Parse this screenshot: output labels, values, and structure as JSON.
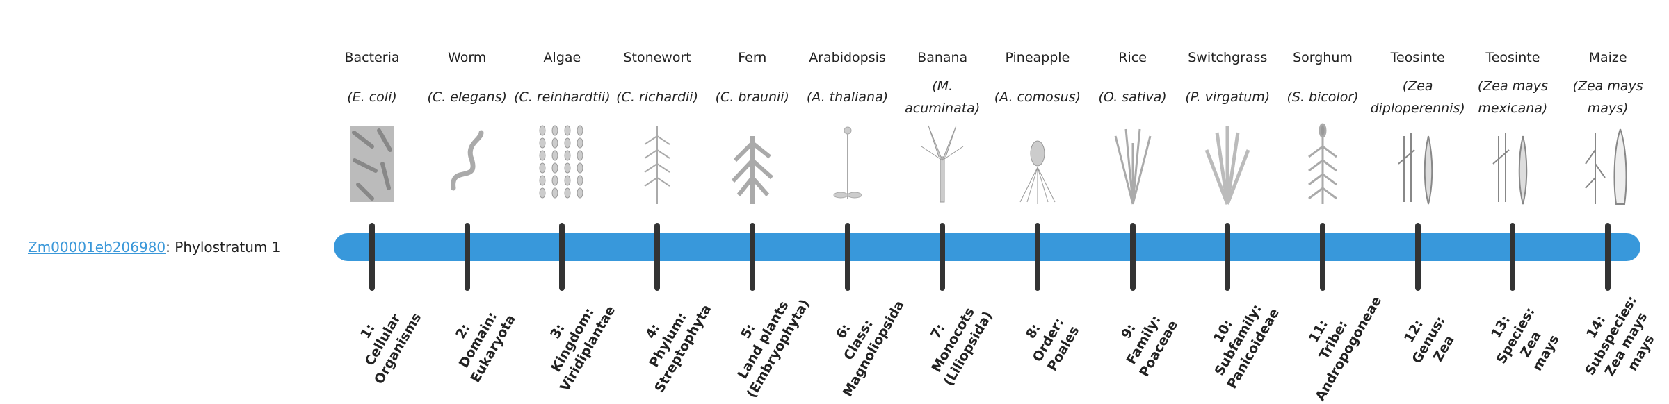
{
  "gene": {
    "id": "Zm00001eb206980",
    "suffix": ": Phylostratum 1"
  },
  "colors": {
    "bar": "#3898db",
    "tick": "#333333",
    "link": "#3b98d9"
  },
  "strata": [
    {
      "common": "Bacteria",
      "species": "(E. coli)",
      "icon": "bacteria-icon",
      "rank": [
        "1:",
        "Cellular",
        "Organisms"
      ]
    },
    {
      "common": "Worm",
      "species": "(C. elegans)",
      "icon": "worm-icon",
      "rank": [
        "2:",
        "Domain:",
        "Eukaryota"
      ]
    },
    {
      "common": "Algae",
      "species": "(C. reinhardtii)",
      "icon": "algae-icon",
      "rank": [
        "3:",
        "Kingdom:",
        "Viridiplantae"
      ]
    },
    {
      "common": "Stonewort",
      "species": "(C. richardii)",
      "icon": "stonewort-icon",
      "rank": [
        "4:",
        "Phylum:",
        "Streptophyta"
      ]
    },
    {
      "common": "Fern",
      "species": "(C. braunii)",
      "icon": "fern-icon",
      "rank": [
        "5:",
        "Land plants",
        "(Embryophyta)"
      ]
    },
    {
      "common": "Arabidopsis",
      "species": "(A. thaliana)",
      "icon": "arabidopsis-icon",
      "rank": [
        "6:",
        "Class:",
        "Magnoliopsida"
      ]
    },
    {
      "common": "Banana",
      "species": "(M. acuminata)",
      "icon": "banana-plant-icon",
      "rank": [
        "7:",
        "Monocots",
        "(Liliopsida)"
      ]
    },
    {
      "common": "Pineapple",
      "species": "(A. comosus)",
      "icon": "pineapple-icon",
      "rank": [
        "8:",
        "Order:",
        "Poales"
      ]
    },
    {
      "common": "Rice",
      "species": "(O. sativa)",
      "icon": "rice-icon",
      "rank": [
        "9:",
        "Family:",
        "Poaceae"
      ]
    },
    {
      "common": "Switchgrass",
      "species": "(P. virgatum)",
      "icon": "switchgrass-icon",
      "rank": [
        "10:",
        "Subfamily:",
        "Panicoideae"
      ]
    },
    {
      "common": "Sorghum",
      "species": "(S. bicolor)",
      "icon": "sorghum-icon",
      "rank": [
        "11:",
        "Tribe:",
        "Andropogoneae"
      ]
    },
    {
      "common": "Teosinte",
      "species": "(Zea diploperennis)",
      "icon": "teosinte-icon",
      "rank": [
        "12:",
        "Genus:",
        "Zea"
      ]
    },
    {
      "common": "Teosinte",
      "species": "(Zea mays mexicana)",
      "icon": "teosinte-icon",
      "rank": [
        "13:",
        "Species:",
        "Zea",
        "mays"
      ]
    },
    {
      "common": "Maize",
      "species": "(Zea mays mays)",
      "icon": "maize-icon",
      "rank": [
        "14:",
        "Subspecies:",
        "Zea mays",
        "mays"
      ]
    }
  ]
}
